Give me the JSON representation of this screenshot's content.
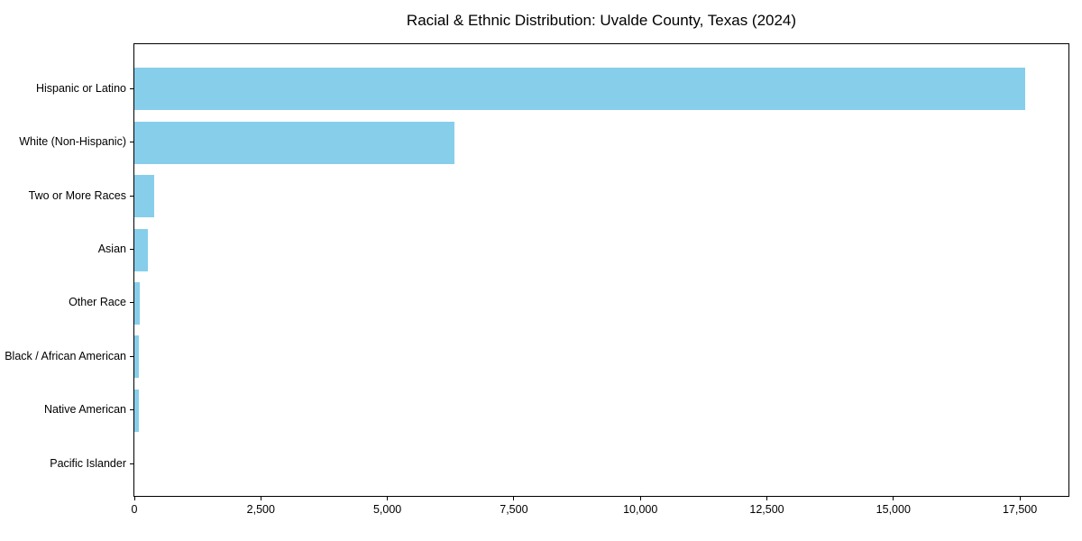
{
  "chart_data": {
    "type": "bar",
    "orientation": "horizontal",
    "title": "Racial & Ethnic Distribution: Uvalde County, Texas (2024)",
    "categories": [
      "Hispanic or Latino",
      "White (Non-Hispanic)",
      "Two or More Races",
      "Asian",
      "Other Race",
      "Black / African American",
      "Native American",
      "Pacific Islander"
    ],
    "values": [
      17600,
      6330,
      400,
      270,
      100,
      85,
      80,
      0
    ],
    "xlabel": "",
    "ylabel": "",
    "xlim": [
      0,
      18460
    ],
    "x_ticks": [
      0,
      2500,
      5000,
      7500,
      10000,
      12500,
      15000,
      17500
    ],
    "x_tick_labels": [
      "0",
      "2,500",
      "5,000",
      "7,500",
      "10,000",
      "12,500",
      "15,000",
      "17,500"
    ],
    "grid": false,
    "legend": null,
    "bar_color": "#87CEEB"
  },
  "colors": {
    "bar": "#87CEEB",
    "axis": "#000000",
    "text": "#000000",
    "background": "#ffffff"
  }
}
